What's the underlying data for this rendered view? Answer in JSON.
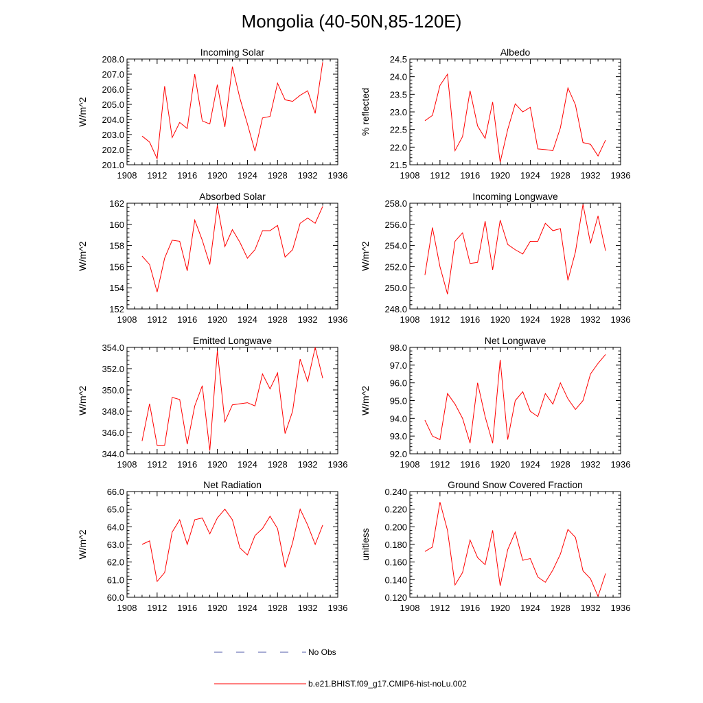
{
  "figure": {
    "title": "Mongolia (40-50N,85-120E)"
  },
  "colors": {
    "model": "#ff0000",
    "obs": "#4f5aa8",
    "axis": "#000000"
  },
  "legend": {
    "obs_label": "No Obs",
    "model_label": "b.e21.BHIST.f09_g17.CMIP6-hist-noLu.002"
  },
  "chart_data": [
    {
      "type": "line",
      "title": "Incoming Solar",
      "ylabel": "W/m^2",
      "xlim": [
        1908,
        1936
      ],
      "xticks": [
        1908,
        1912,
        1916,
        1920,
        1924,
        1928,
        1932,
        1936
      ],
      "ylim": [
        201.0,
        208.0
      ],
      "yticks": [
        201.0,
        202.0,
        203.0,
        204.0,
        205.0,
        206.0,
        207.0,
        208.0
      ],
      "ytick_labels": [
        "201.0",
        "202.0",
        "203.0",
        "204.0",
        "205.0",
        "206.0",
        "207.0",
        "208.0"
      ],
      "x": [
        1910,
        1911,
        1912,
        1913,
        1914,
        1915,
        1916,
        1917,
        1918,
        1919,
        1920,
        1921,
        1922,
        1923,
        1924,
        1925,
        1926,
        1927,
        1928,
        1929,
        1930,
        1931,
        1932,
        1933,
        1934
      ],
      "series": [
        {
          "values": [
            202.9,
            202.5,
            201.4,
            206.2,
            202.8,
            203.8,
            203.4,
            207.0,
            203.9,
            203.7,
            206.3,
            203.5,
            207.5,
            205.4,
            203.7,
            201.9,
            204.1,
            204.2,
            206.4,
            205.3,
            205.2,
            205.6,
            205.9,
            204.4,
            207.8
          ]
        }
      ]
    },
    {
      "type": "line",
      "title": "Albedo",
      "ylabel": "% reflected",
      "xlim": [
        1908,
        1936
      ],
      "xticks": [
        1908,
        1912,
        1916,
        1920,
        1924,
        1928,
        1932,
        1936
      ],
      "ylim": [
        21.5,
        24.5
      ],
      "yticks": [
        21.5,
        22.0,
        22.5,
        23.0,
        23.5,
        24.0,
        24.5
      ],
      "ytick_labels": [
        "21.5",
        "22.0",
        "22.5",
        "23.0",
        "23.5",
        "24.0",
        "24.5"
      ],
      "x": [
        1910,
        1911,
        1912,
        1913,
        1914,
        1915,
        1916,
        1917,
        1918,
        1919,
        1920,
        1921,
        1922,
        1923,
        1924,
        1925,
        1926,
        1927,
        1928,
        1929,
        1930,
        1931,
        1932,
        1933,
        1934
      ],
      "series": [
        {
          "values": [
            22.75,
            22.9,
            23.75,
            24.07,
            21.9,
            22.3,
            23.6,
            22.6,
            22.25,
            23.28,
            21.57,
            22.5,
            23.23,
            23.0,
            23.13,
            21.95,
            21.93,
            21.9,
            22.55,
            23.68,
            23.2,
            22.13,
            22.08,
            21.75,
            22.2
          ]
        }
      ]
    },
    {
      "type": "line",
      "title": "Absorbed Solar",
      "ylabel": "W/m^2",
      "xlim": [
        1908,
        1936
      ],
      "xticks": [
        1908,
        1912,
        1916,
        1920,
        1924,
        1928,
        1932,
        1936
      ],
      "ylim": [
        152,
        162
      ],
      "yticks": [
        152,
        154,
        156,
        158,
        160,
        162
      ],
      "ytick_labels": [
        "152",
        "154",
        "156",
        "158",
        "160",
        "162"
      ],
      "x": [
        1910,
        1911,
        1912,
        1913,
        1914,
        1915,
        1916,
        1917,
        1918,
        1919,
        1920,
        1921,
        1922,
        1923,
        1924,
        1925,
        1926,
        1927,
        1928,
        1929,
        1930,
        1931,
        1932,
        1933,
        1934
      ],
      "series": [
        {
          "values": [
            157.0,
            156.2,
            153.6,
            156.8,
            158.5,
            158.4,
            155.6,
            160.4,
            158.5,
            156.2,
            161.8,
            157.9,
            159.5,
            158.3,
            156.8,
            157.6,
            159.4,
            159.4,
            159.9,
            156.9,
            157.6,
            160.1,
            160.6,
            160.1,
            161.7
          ]
        }
      ]
    },
    {
      "type": "line",
      "title": "Incoming Longwave",
      "ylabel": "W/m^2",
      "xlim": [
        1908,
        1936
      ],
      "xticks": [
        1908,
        1912,
        1916,
        1920,
        1924,
        1928,
        1932,
        1936
      ],
      "ylim": [
        248.0,
        258.0
      ],
      "yticks": [
        248.0,
        250.0,
        252.0,
        254.0,
        256.0,
        258.0
      ],
      "ytick_labels": [
        "248.0",
        "250.0",
        "252.0",
        "254.0",
        "256.0",
        "258.0"
      ],
      "x": [
        1910,
        1911,
        1912,
        1913,
        1914,
        1915,
        1916,
        1917,
        1918,
        1919,
        1920,
        1921,
        1922,
        1923,
        1924,
        1925,
        1926,
        1927,
        1928,
        1929,
        1930,
        1931,
        1932,
        1933,
        1934
      ],
      "series": [
        {
          "values": [
            251.2,
            255.7,
            252.0,
            249.4,
            254.4,
            255.2,
            252.3,
            252.4,
            256.3,
            251.7,
            256.4,
            254.1,
            253.6,
            253.2,
            254.4,
            254.4,
            256.1,
            255.4,
            255.6,
            250.7,
            253.4,
            257.9,
            254.2,
            256.8,
            253.5
          ]
        }
      ]
    },
    {
      "type": "line",
      "title": "Emitted Longwave",
      "ylabel": "W/m^2",
      "xlim": [
        1908,
        1936
      ],
      "xticks": [
        1908,
        1912,
        1916,
        1920,
        1924,
        1928,
        1932,
        1936
      ],
      "ylim": [
        344.0,
        354.0
      ],
      "yticks": [
        344.0,
        346.0,
        348.0,
        350.0,
        352.0,
        354.0
      ],
      "ytick_labels": [
        "344.0",
        "346.0",
        "348.0",
        "350.0",
        "352.0",
        "354.0"
      ],
      "x": [
        1910,
        1911,
        1912,
        1913,
        1914,
        1915,
        1916,
        1917,
        1918,
        1919,
        1920,
        1921,
        1922,
        1923,
        1924,
        1925,
        1926,
        1927,
        1928,
        1929,
        1930,
        1931,
        1932,
        1933,
        1934
      ],
      "series": [
        {
          "values": [
            345.2,
            348.7,
            344.8,
            344.8,
            349.3,
            349.1,
            344.9,
            348.5,
            350.4,
            344.3,
            353.7,
            347.0,
            348.6,
            348.7,
            348.8,
            348.5,
            351.5,
            350.1,
            351.6,
            345.9,
            348.0,
            352.9,
            350.8,
            354.0,
            351.1
          ]
        }
      ]
    },
    {
      "type": "line",
      "title": "Net Longwave",
      "ylabel": "W/m^2",
      "xlim": [
        1908,
        1936
      ],
      "xticks": [
        1908,
        1912,
        1916,
        1920,
        1924,
        1928,
        1932,
        1936
      ],
      "ylim": [
        92.0,
        98.0
      ],
      "yticks": [
        92.0,
        93.0,
        94.0,
        95.0,
        96.0,
        97.0,
        98.0
      ],
      "ytick_labels": [
        "92.0",
        "93.0",
        "94.0",
        "95.0",
        "96.0",
        "97.0",
        "98.0"
      ],
      "x": [
        1910,
        1911,
        1912,
        1913,
        1914,
        1915,
        1916,
        1917,
        1918,
        1919,
        1920,
        1921,
        1922,
        1923,
        1924,
        1925,
        1926,
        1927,
        1928,
        1929,
        1930,
        1931,
        1932,
        1933,
        1934
      ],
      "series": [
        {
          "values": [
            93.9,
            93.0,
            92.8,
            95.4,
            94.8,
            94.0,
            92.6,
            96.0,
            94.1,
            92.6,
            97.3,
            92.8,
            95.0,
            95.5,
            94.4,
            94.1,
            95.4,
            94.8,
            96.0,
            95.1,
            94.5,
            95.0,
            96.5,
            97.1,
            97.6
          ]
        }
      ]
    },
    {
      "type": "line",
      "title": "Net Radiation",
      "ylabel": "W/m^2",
      "xlim": [
        1908,
        1936
      ],
      "xticks": [
        1908,
        1912,
        1916,
        1920,
        1924,
        1928,
        1932,
        1936
      ],
      "ylim": [
        60.0,
        66.0
      ],
      "yticks": [
        60.0,
        61.0,
        62.0,
        63.0,
        64.0,
        65.0,
        66.0
      ],
      "ytick_labels": [
        "60.0",
        "61.0",
        "62.0",
        "63.0",
        "64.0",
        "65.0",
        "66.0"
      ],
      "x": [
        1910,
        1911,
        1912,
        1913,
        1914,
        1915,
        1916,
        1917,
        1918,
        1919,
        1920,
        1921,
        1922,
        1923,
        1924,
        1925,
        1926,
        1927,
        1928,
        1929,
        1930,
        1931,
        1932,
        1933,
        1934
      ],
      "series": [
        {
          "values": [
            63.0,
            63.2,
            60.9,
            61.4,
            63.7,
            64.4,
            63.0,
            64.4,
            64.5,
            63.6,
            64.5,
            65.0,
            64.4,
            62.8,
            62.4,
            63.5,
            63.9,
            64.6,
            63.9,
            61.7,
            63.1,
            65.0,
            64.1,
            63.0,
            64.1
          ]
        }
      ]
    },
    {
      "type": "line",
      "title": "Ground Snow Covered Fraction",
      "ylabel": "unitless",
      "xlim": [
        1908,
        1936
      ],
      "xticks": [
        1908,
        1912,
        1916,
        1920,
        1924,
        1928,
        1932,
        1936
      ],
      "ylim": [
        0.12,
        0.24
      ],
      "yticks": [
        0.12,
        0.14,
        0.16,
        0.18,
        0.2,
        0.22,
        0.24
      ],
      "ytick_labels": [
        "0.120",
        "0.140",
        "0.160",
        "0.180",
        "0.200",
        "0.220",
        "0.240"
      ],
      "x": [
        1910,
        1911,
        1912,
        1913,
        1914,
        1915,
        1916,
        1917,
        1918,
        1919,
        1920,
        1921,
        1922,
        1923,
        1924,
        1925,
        1926,
        1927,
        1928,
        1929,
        1930,
        1931,
        1932,
        1933,
        1934
      ],
      "series": [
        {
          "values": [
            0.172,
            0.177,
            0.228,
            0.196,
            0.134,
            0.148,
            0.185,
            0.165,
            0.157,
            0.196,
            0.133,
            0.174,
            0.194,
            0.162,
            0.164,
            0.143,
            0.137,
            0.151,
            0.169,
            0.197,
            0.188,
            0.15,
            0.141,
            0.121,
            0.147
          ]
        }
      ]
    }
  ]
}
